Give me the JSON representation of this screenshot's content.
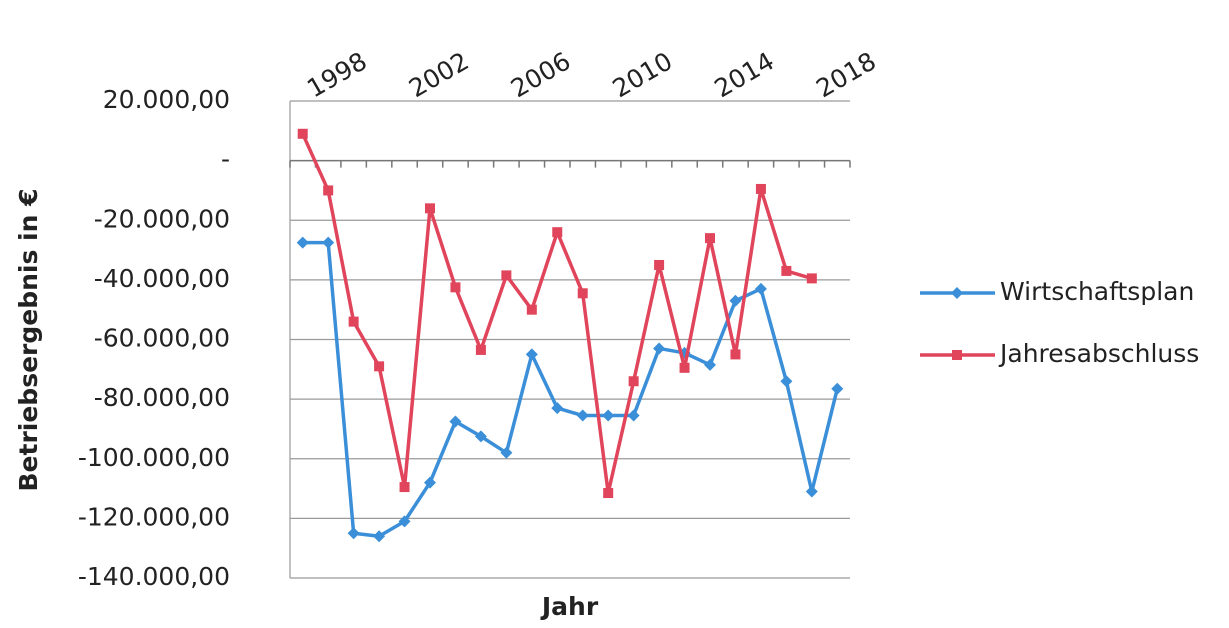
{
  "chart_data": {
    "type": "line",
    "y_label": "Betriebsergebnis in €",
    "x_label": "Jahr",
    "categories": [
      null,
      "1998",
      null,
      null,
      null,
      "2002",
      null,
      null,
      null,
      "2006",
      null,
      null,
      null,
      "2010",
      null,
      null,
      null,
      "2014",
      null,
      null,
      null,
      "2018"
    ],
    "series": [
      {
        "name": "Wirtschaftsplan",
        "color": "#3b8fd8",
        "marker": "diamond",
        "values": [
          -27500,
          -27500,
          -125000,
          -126000,
          -121000,
          -108000,
          -87500,
          -92500,
          -98000,
          -65000,
          -83000,
          -85500,
          -85500,
          -85500,
          -63000,
          -64500,
          -68500,
          -47000,
          -43000,
          -74000,
          -111000,
          -76500
        ]
      },
      {
        "name": "Jahresabschluss",
        "color": "#e0455c",
        "marker": "square",
        "values": [
          9000,
          -10000,
          -54000,
          -69000,
          -109500,
          -16000,
          -42500,
          -63500,
          -38500,
          -50000,
          -24000,
          -44500,
          -111500,
          -74000,
          -35000,
          -69500,
          -26000,
          -65000,
          -9500,
          -37000,
          -39500,
          null
        ]
      }
    ],
    "ylim": [
      -140000,
      20000
    ],
    "yticks": [
      {
        "value": 20000,
        "label": "20.000,00"
      },
      {
        "value": 0,
        "label": "-"
      },
      {
        "value": -20000,
        "label": "-20.000,00"
      },
      {
        "value": -40000,
        "label": "-40.000,00"
      },
      {
        "value": -60000,
        "label": "-60.000,00"
      },
      {
        "value": -80000,
        "label": "-80.000,00"
      },
      {
        "value": -100000,
        "label": "-100.000,00"
      },
      {
        "value": -120000,
        "label": "-120.000,00"
      },
      {
        "value": -140000,
        "label": "-140.000,00"
      }
    ],
    "grid": true,
    "legend": "right"
  }
}
